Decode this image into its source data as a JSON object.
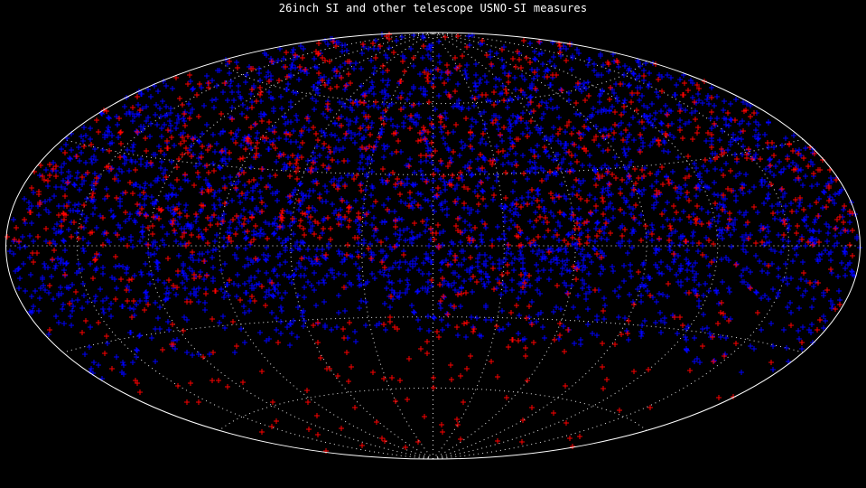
{
  "title": "26inch SI and other telescope USNO-SI measures",
  "chart_data": {
    "type": "scatter",
    "projection": "aitoff",
    "title": "26inch SI and other telescope USNO-SI measures",
    "xlabel": "",
    "ylabel": "",
    "xlim": [
      -180,
      180
    ],
    "ylim": [
      -90,
      90
    ],
    "grid": true,
    "grid_spacing": {
      "longitude": 30,
      "latitude": 30
    },
    "marker": "+",
    "series": [
      {
        "color": "#0000ff",
        "count_estimate": 9000,
        "dec_range": [
          -40,
          90
        ],
        "density_note": "dense coverage across northern sky, thinning below dec -20",
        "sample_points": [
          [
            -150,
            60
          ],
          [
            -120,
            45
          ],
          [
            -90,
            30
          ],
          [
            -60,
            15
          ],
          [
            -30,
            5
          ],
          [
            0,
            50
          ],
          [
            30,
            40
          ],
          [
            60,
            25
          ],
          [
            90,
            10
          ],
          [
            120,
            -10
          ],
          [
            150,
            55
          ],
          [
            -170,
            20
          ],
          [
            -140,
            -15
          ],
          [
            -100,
            70
          ],
          [
            -70,
            -25
          ],
          [
            -40,
            35
          ],
          [
            -10,
            80
          ],
          [
            20,
            -5
          ],
          [
            50,
            65
          ],
          [
            80,
            45
          ],
          [
            110,
            30
          ],
          [
            140,
            -30
          ],
          [
            -160,
            40
          ],
          [
            -110,
            5
          ],
          [
            -80,
            55
          ],
          [
            -50,
            -10
          ],
          [
            -20,
            25
          ],
          [
            10,
            60
          ],
          [
            40,
            15
          ],
          [
            70,
            -20
          ],
          [
            100,
            50
          ],
          [
            130,
            20
          ],
          [
            165,
            35
          ]
        ]
      },
      {
        "color": "#ff0000",
        "count_estimate": 1400,
        "dec_range": [
          -90,
          90
        ],
        "density_note": "scattered across entire sky including southern region",
        "sample_points": [
          [
            -150,
            40
          ],
          [
            -100,
            20
          ],
          [
            -50,
            60
          ],
          [
            0,
            30
          ],
          [
            50,
            10
          ],
          [
            100,
            45
          ],
          [
            150,
            25
          ],
          [
            -120,
            -45
          ],
          [
            -60,
            -55
          ],
          [
            0,
            -60
          ],
          [
            60,
            -50
          ],
          [
            120,
            -40
          ],
          [
            -90,
            -70
          ],
          [
            -30,
            -75
          ],
          [
            30,
            -65
          ],
          [
            90,
            -80
          ],
          [
            -20,
            -35
          ],
          [
            20,
            -30
          ],
          [
            -75,
            5
          ],
          [
            75,
            -5
          ]
        ]
      }
    ]
  }
}
